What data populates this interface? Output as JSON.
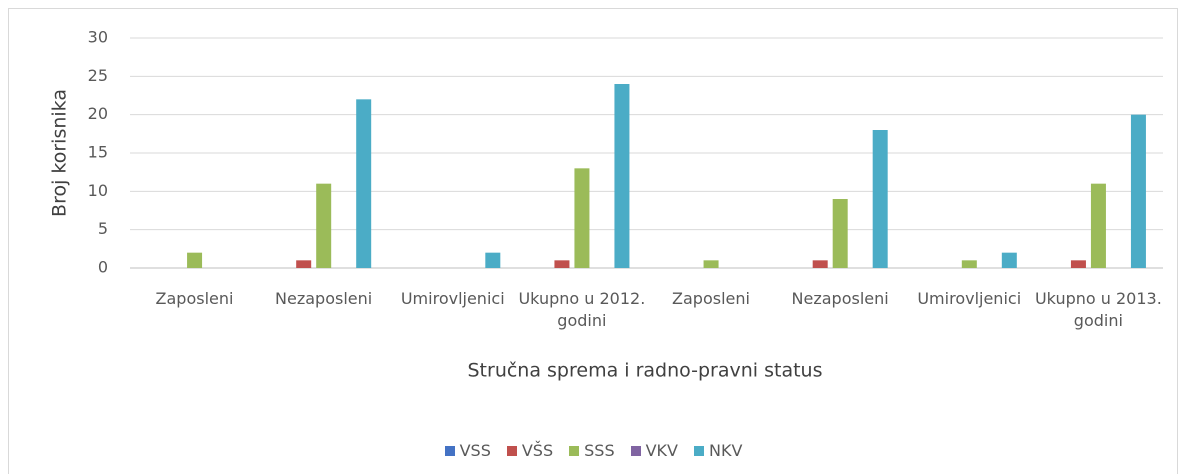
{
  "chart_data": {
    "type": "bar",
    "y_label": "Broj korisnika",
    "x_label": "Stručna sprema i radno-pravni status",
    "categories": [
      "Zaposleni",
      "Nezaposleni",
      "Umirovljenici",
      "Ukupno u 2012. godini",
      "Zaposleni",
      "Nezaposleni",
      "Umirovljenici",
      "Ukupno u 2013. godini"
    ],
    "series": [
      {
        "name": "VSS",
        "color": "#4472c4",
        "values": [
          0,
          0,
          0,
          0,
          0,
          0,
          0,
          0
        ]
      },
      {
        "name": "VŠS",
        "color": "#c0504d",
        "values": [
          0,
          1,
          0,
          1,
          0,
          1,
          0,
          1
        ]
      },
      {
        "name": "SSS",
        "color": "#9bbb59",
        "values": [
          2,
          11,
          0,
          13,
          1,
          9,
          1,
          11
        ]
      },
      {
        "name": "VKV",
        "color": "#8064a2",
        "values": [
          0,
          0,
          0,
          0,
          0,
          0,
          0,
          0
        ]
      },
      {
        "name": "NKV",
        "color": "#4bacc6",
        "values": [
          0,
          22,
          2,
          24,
          0,
          18,
          2,
          20
        ]
      }
    ],
    "ylim": [
      0,
      30
    ],
    "yticks": [
      0,
      5,
      10,
      15,
      20,
      25,
      30
    ],
    "grid": true,
    "legend": "bottom"
  }
}
